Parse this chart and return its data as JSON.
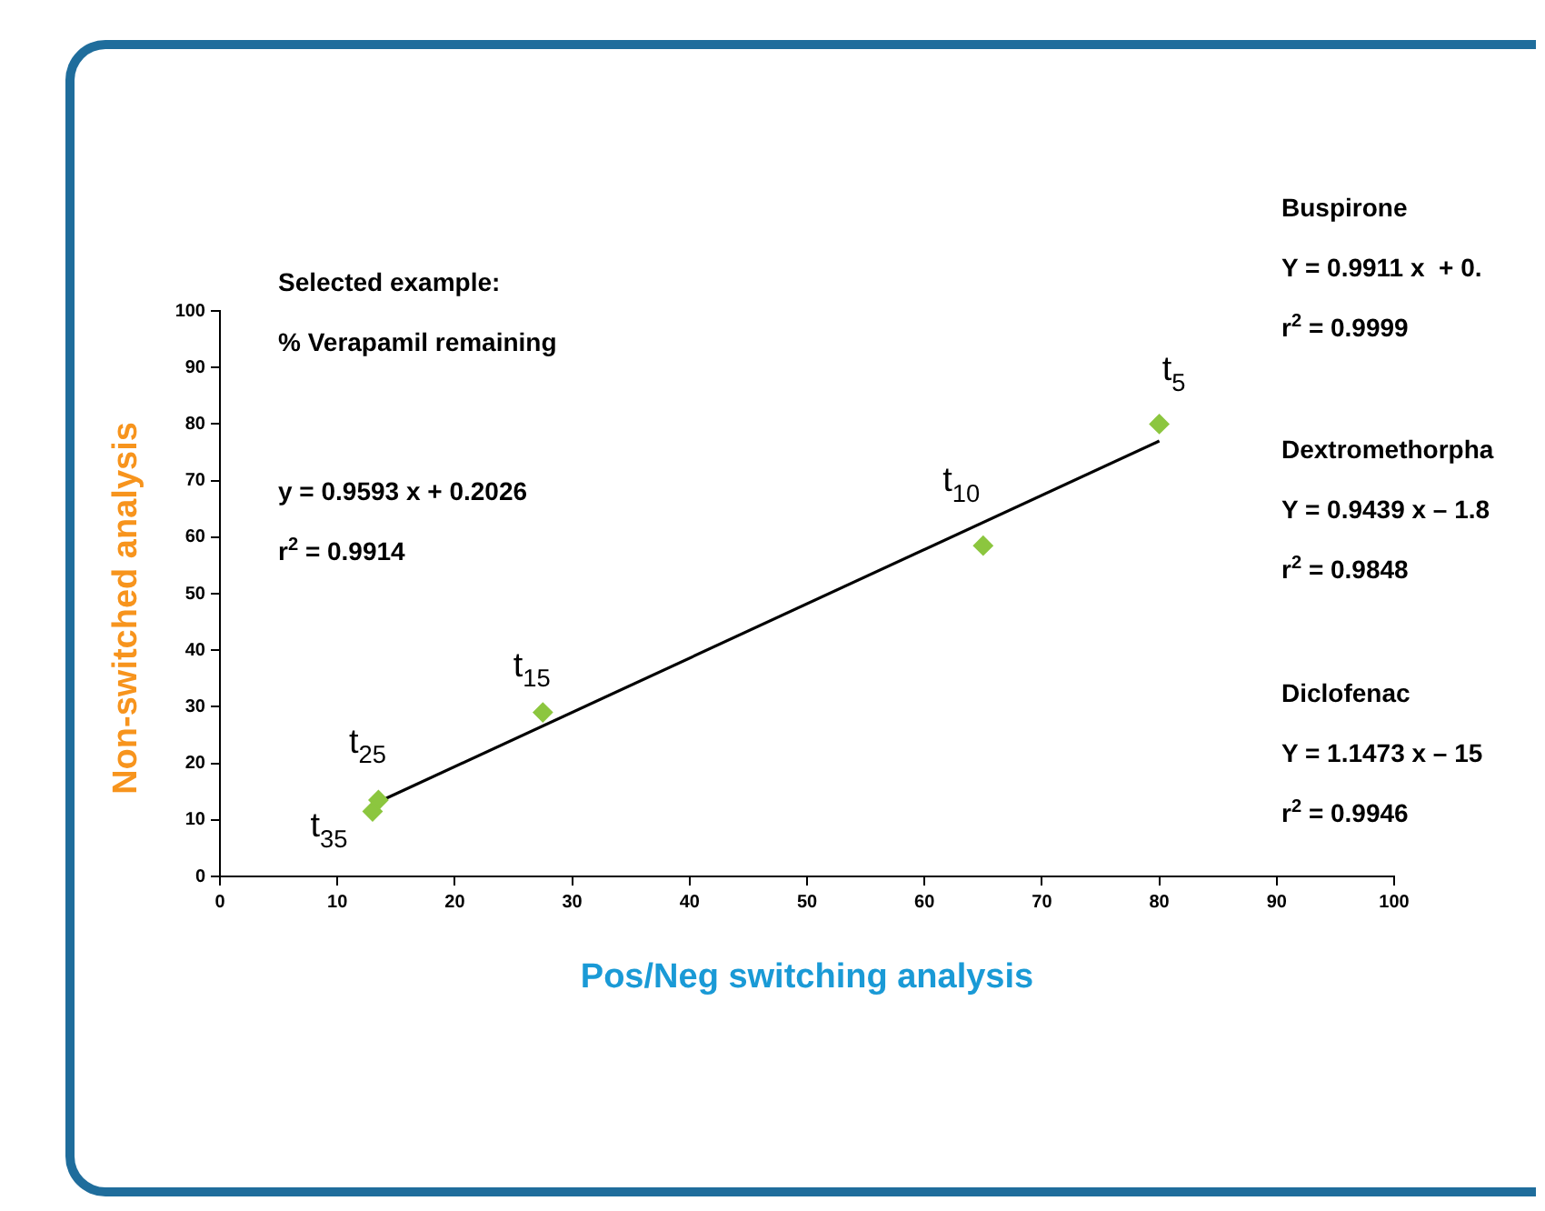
{
  "chart_data": {
    "type": "scatter",
    "title": "Selected example:",
    "subtitle": "% Verapamil remaining",
    "xlabel": "Pos/Neg switching analysis",
    "ylabel": "Non-switched analysis",
    "marker": "diamond",
    "legend": false,
    "grid": false,
    "xlim": [
      0,
      100
    ],
    "xticks": [
      0,
      10,
      20,
      30,
      40,
      50,
      60,
      70,
      80,
      90,
      100
    ],
    "ylim": [
      0,
      100
    ],
    "yticks": [
      0,
      10,
      20,
      30,
      40,
      50,
      60,
      70,
      80,
      90,
      100
    ],
    "series": [
      {
        "color": "#8cc63f",
        "x": [
          80,
          65,
          27.5,
          13.5,
          13
        ],
        "values": [
          80,
          58.5,
          29,
          13.5,
          11.5
        ]
      },
      {
        "type": "line",
        "marker": "none",
        "color": "#000000",
        "x": [
          13,
          80
        ],
        "values": [
          12.7,
          77
        ]
      }
    ],
    "annotations": [
      {
        "text": "t$_{5}$",
        "x": 80,
        "y": 80
      },
      {
        "text": "t$_{10}$",
        "x": 65,
        "y": 58.5
      },
      {
        "text": "t$_{15}$",
        "x": 27.5,
        "y": 29
      },
      {
        "text": "t$_{25}$",
        "x": 13.5,
        "y": 13.5
      },
      {
        "text": "t$_{35}$",
        "x": 13,
        "y": 11.5
      },
      "y = 0.9593 x + 0.2026",
      "r$^{2}$ = 0.9914",
      "Buspirone",
      "Y = 0.9911 x  + 0.",
      "r$^{2}$ = 0.9999",
      "Dextromethorpha",
      "Y = 0.9439 x – 1.8",
      "r$^{2}$ = 0.9848",
      "Diclofenac",
      "Y = 1.1473 x – 15",
      "r$^{2}$ = 0.9946"
    ]
  }
}
